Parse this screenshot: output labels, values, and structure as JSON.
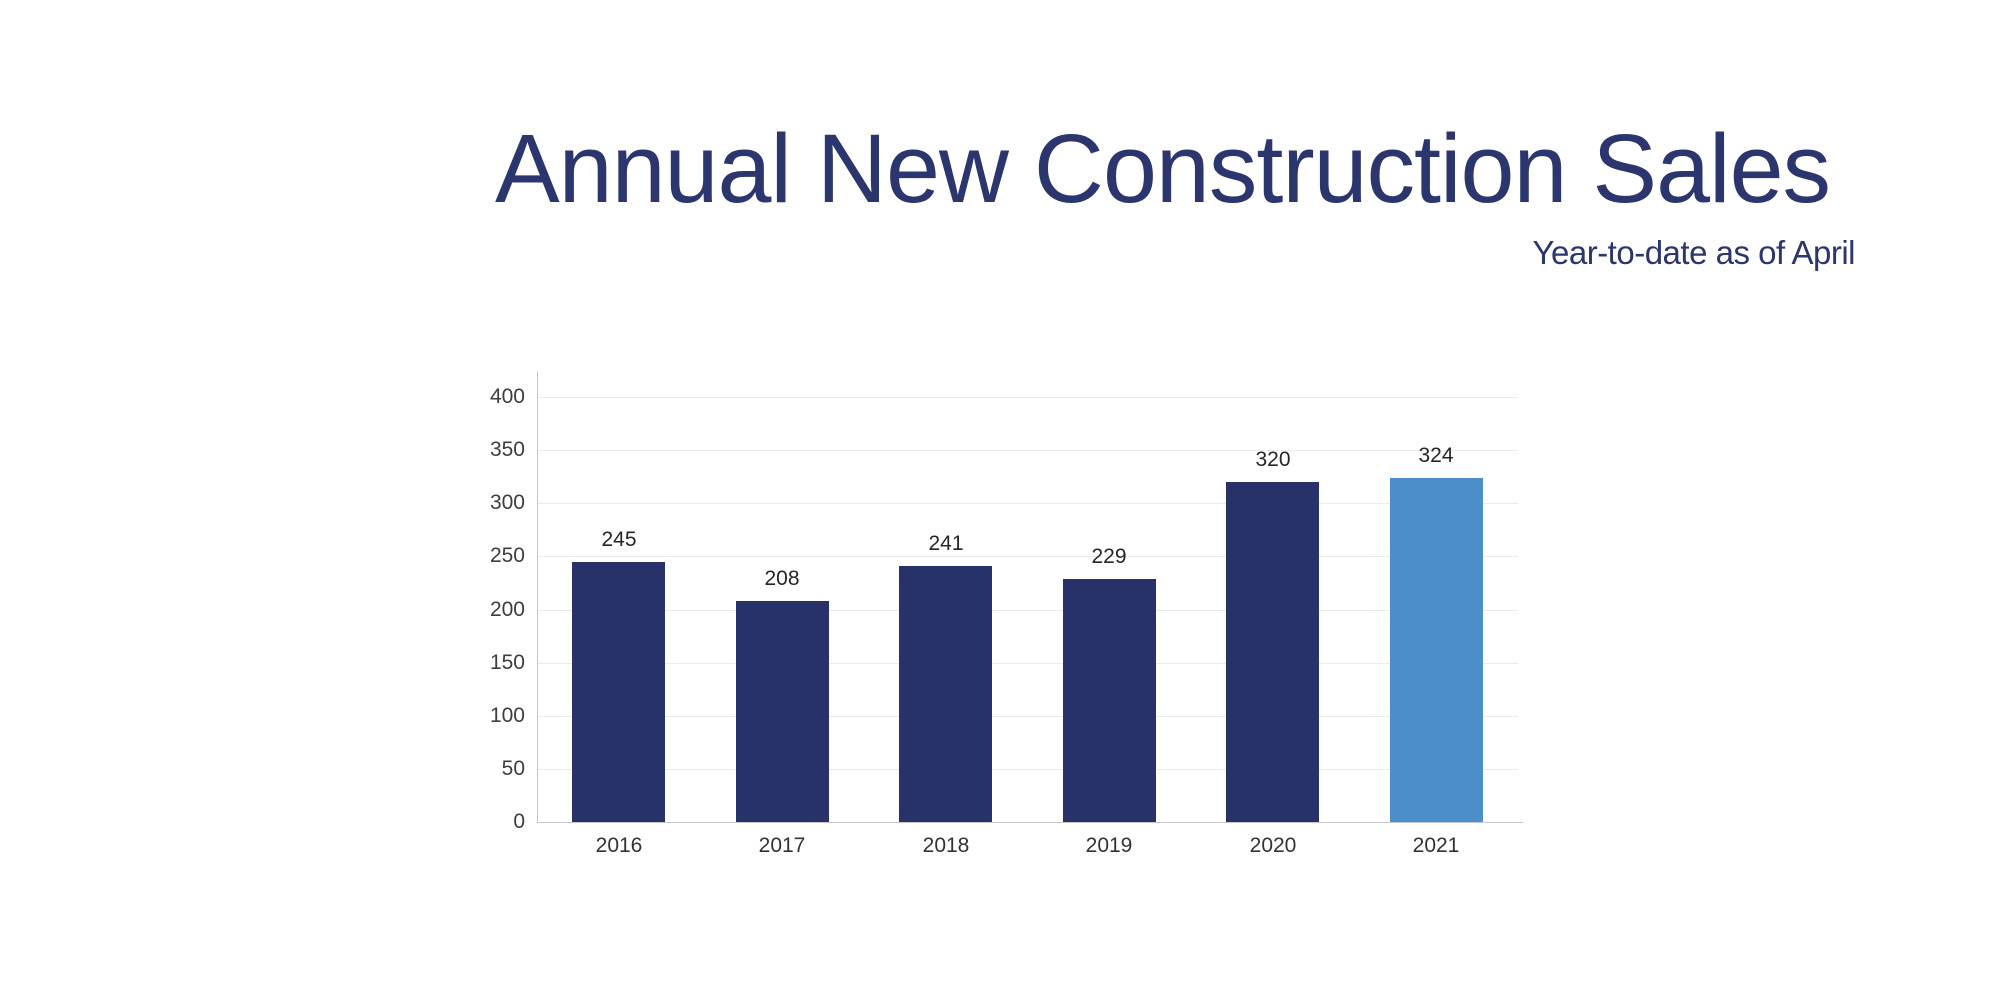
{
  "header": {
    "title": "Annual New Construction Sales",
    "subtitle": "Year-to-date as of April"
  },
  "chart_data": {
    "type": "bar",
    "title": "Annual New Construction Sales",
    "subtitle": "Year-to-date as of April",
    "categories": [
      "2016",
      "2017",
      "2018",
      "2019",
      "2020",
      "2021"
    ],
    "values": [
      245,
      208,
      241,
      229,
      320,
      324
    ],
    "bar_labels": [
      "245",
      "208",
      "241",
      "229",
      "320",
      "324"
    ],
    "xlabel": "",
    "ylabel": "",
    "ylim": [
      0,
      400
    ],
    "yticks": [
      0,
      50,
      100,
      150,
      200,
      250,
      300,
      350,
      400
    ],
    "grid": true,
    "legend": "none",
    "highlight_index": 5,
    "colors": {
      "bar": "#28326A",
      "highlight_bar": "#4C8ECA",
      "title_text": "#2B356E",
      "subtitle_text": "#2B356E",
      "gridline": "#E9EBF0",
      "axis_line": "#C4C6CB",
      "y_tick_label": "#3D3D3D",
      "x_tick_label": "#333333",
      "value_label": "#262626",
      "background": "#FFFFFF"
    }
  }
}
